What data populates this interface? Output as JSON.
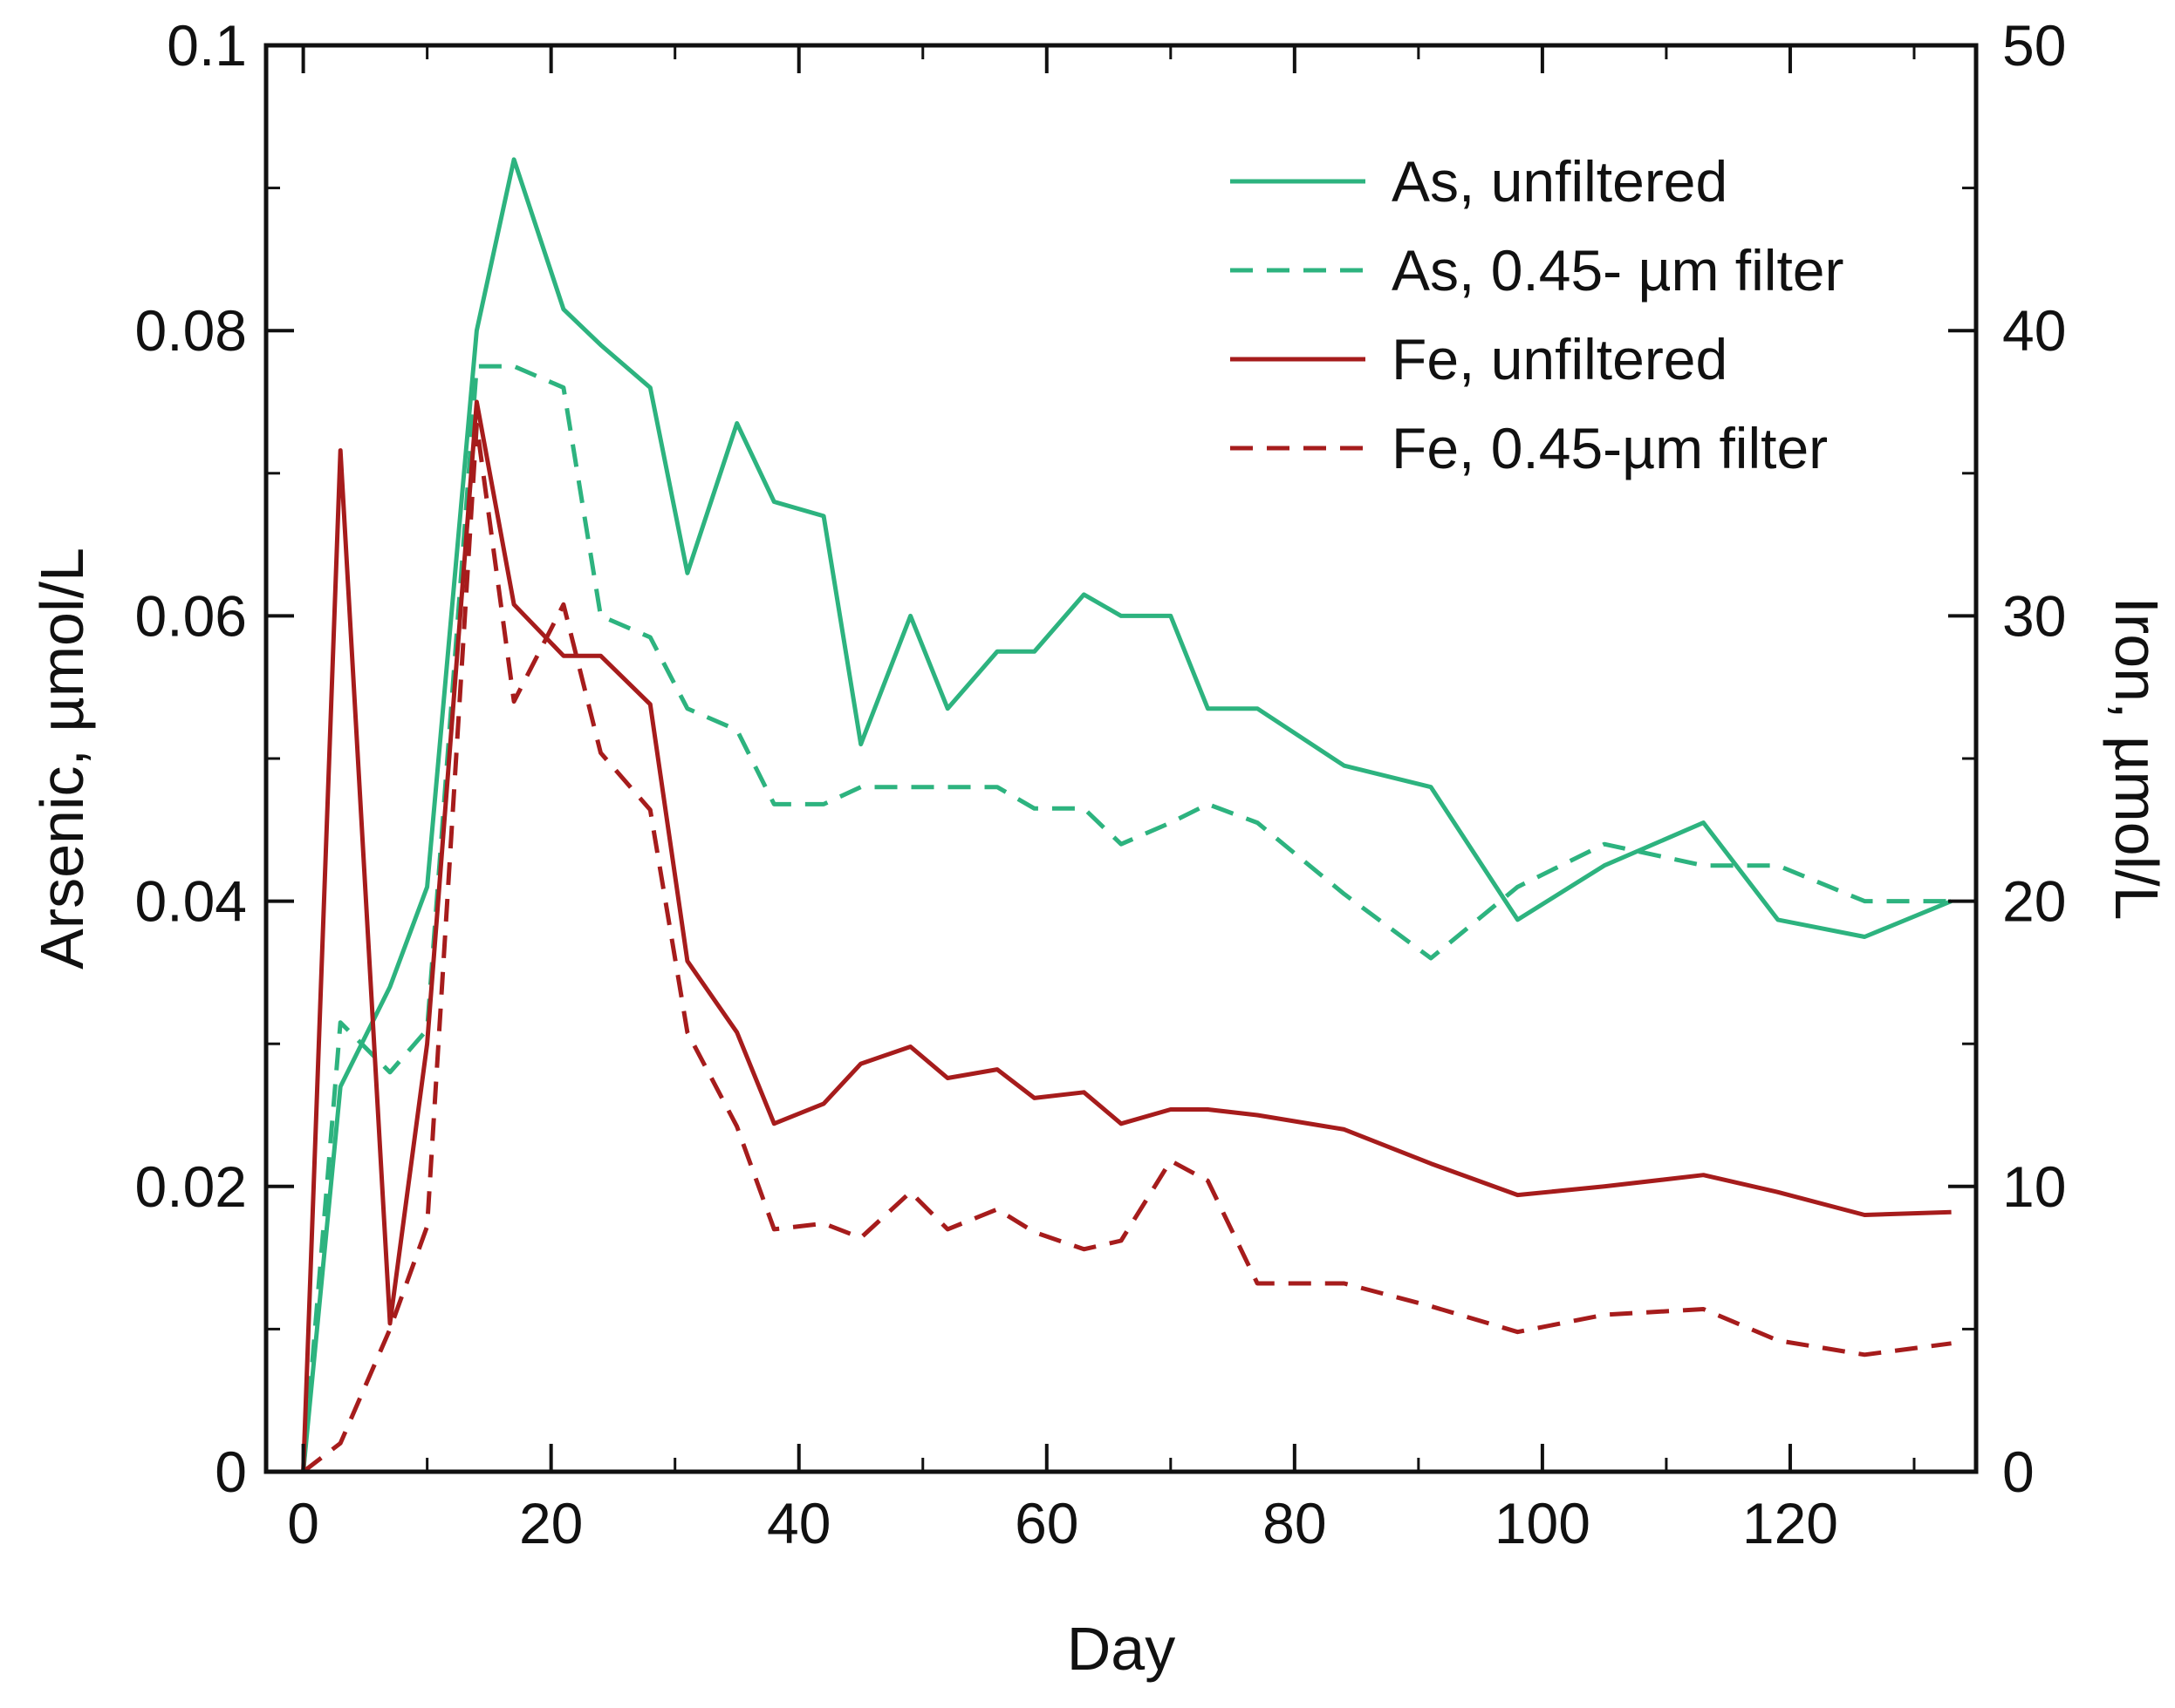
{
  "chart_data": {
    "type": "line",
    "title": "",
    "xlabel": "Day",
    "ylabel_left": "Arsenic, µmol/L",
    "ylabel_right": "Iron, µmol/L",
    "xlim": [
      -3,
      135
    ],
    "ylim_left": [
      0,
      0.1
    ],
    "ylim_right": [
      0,
      50
    ],
    "xticks": [
      "0",
      "20",
      "40",
      "60",
      "80",
      "100",
      "120"
    ],
    "yticks_left": [
      "0",
      "0.02",
      "0.04",
      "0.06",
      "0.08",
      "0.1"
    ],
    "yticks_right": [
      "0",
      "10",
      "20",
      "30",
      "40",
      "50"
    ],
    "grid": false,
    "legend_position": "top-right",
    "colors": {
      "as": "#2db37f",
      "fe": "#a61c1c",
      "axis": "#111111"
    },
    "series": [
      {
        "name": "As, unfiltered",
        "axis": "left",
        "style": "solid",
        "color": "#2db37f",
        "x": [
          0,
          3,
          7,
          10,
          14,
          17,
          21,
          24,
          28,
          31,
          35,
          38,
          42,
          45,
          49,
          52,
          56,
          59,
          63,
          66,
          70,
          73,
          77,
          84,
          91,
          98,
          105,
          113,
          119,
          126,
          133
        ],
        "y": [
          0,
          0.027,
          0.034,
          0.041,
          0.08,
          0.092,
          0.0815,
          0.079,
          0.076,
          0.063,
          0.0735,
          0.068,
          0.067,
          0.051,
          0.06,
          0.0535,
          0.0575,
          0.0575,
          0.0615,
          0.06,
          0.06,
          0.0535,
          0.0535,
          0.0495,
          0.048,
          0.0387,
          0.0425,
          0.0455,
          0.0387,
          0.0375,
          0.04
        ]
      },
      {
        "name": "As, 0.45- µm filter",
        "axis": "left",
        "style": "dashed",
        "color": "#2db37f",
        "x": [
          0,
          3,
          7,
          10,
          14,
          17,
          21,
          24,
          28,
          31,
          35,
          38,
          42,
          45,
          49,
          52,
          56,
          59,
          63,
          66,
          70,
          73,
          77,
          84,
          91,
          98,
          105,
          113,
          119,
          126,
          133
        ],
        "y": [
          0,
          0.0315,
          0.028,
          0.031,
          0.0775,
          0.0775,
          0.076,
          0.06,
          0.0585,
          0.0535,
          0.052,
          0.0468,
          0.0468,
          0.048,
          0.048,
          0.048,
          0.048,
          0.0465,
          0.0465,
          0.044,
          0.0455,
          0.0468,
          0.0455,
          0.0405,
          0.036,
          0.041,
          0.044,
          0.0425,
          0.0425,
          0.04,
          0.04
        ]
      },
      {
        "name": "Fe, unfiltered",
        "axis": "right",
        "style": "solid",
        "color": "#a61c1c",
        "x": [
          0,
          3,
          7,
          10,
          14,
          17,
          21,
          24,
          28,
          31,
          35,
          38,
          42,
          45,
          49,
          52,
          56,
          59,
          63,
          66,
          70,
          73,
          77,
          84,
          91,
          98,
          105,
          113,
          119,
          126,
          133
        ],
        "y": [
          0,
          35.8,
          5.2,
          15,
          37.5,
          30.4,
          28.6,
          28.6,
          26.9,
          17.9,
          15.4,
          12.2,
          12.9,
          14.3,
          14.9,
          13.8,
          14.1,
          13.1,
          13.3,
          12.2,
          12.7,
          12.7,
          12.5,
          12,
          10.8,
          9.7,
          10,
          10.4,
          9.8,
          9,
          9.1
        ]
      },
      {
        "name": "Fe, 0.45-µm filter",
        "axis": "right",
        "style": "dashed",
        "color": "#a61c1c",
        "x": [
          0,
          3,
          7,
          10,
          14,
          17,
          21,
          24,
          28,
          31,
          35,
          38,
          42,
          45,
          49,
          52,
          56,
          59,
          63,
          66,
          70,
          73,
          77,
          84,
          91,
          98,
          105,
          113,
          119,
          126,
          133
        ],
        "y": [
          0,
          1,
          5,
          8.6,
          36.7,
          27,
          30.4,
          25.2,
          23.2,
          15.4,
          12.1,
          8.5,
          8.7,
          8.2,
          9.8,
          8.5,
          9.2,
          8.4,
          7.8,
          8.1,
          10.9,
          10.2,
          6.6,
          6.6,
          5.8,
          4.9,
          5.5,
          5.7,
          4.6,
          4.1,
          4.5
        ]
      }
    ]
  }
}
